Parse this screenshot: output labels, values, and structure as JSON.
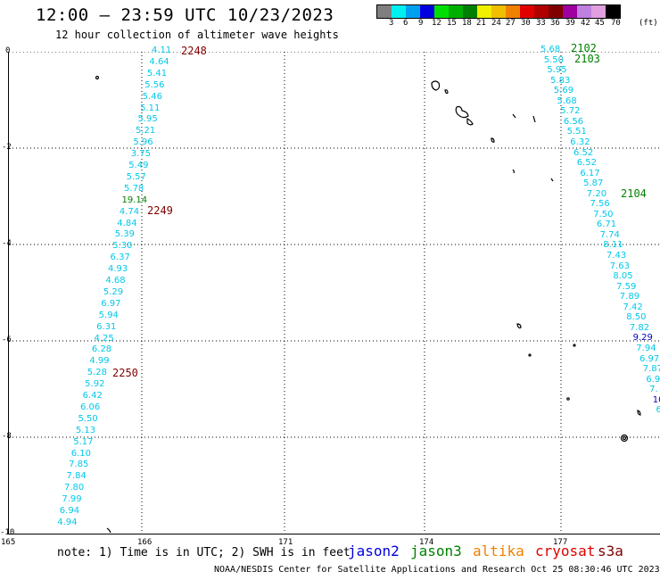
{
  "header": {
    "title": "12:00 – 23:59 UTC 10/23/2023",
    "subtitle": "12 hour collection of altimeter wave heights"
  },
  "colorbar": {
    "colors": [
      "#7f7f7f",
      "#00f0f0",
      "#00a0f0",
      "#0000e0",
      "#00e000",
      "#00b000",
      "#008000",
      "#f0f000",
      "#f0c000",
      "#f08000",
      "#e00000",
      "#b00000",
      "#800000",
      "#a000a0",
      "#c080e0",
      "#e0a0e0",
      "#000000"
    ],
    "labels": [
      "3",
      "6",
      "9",
      "12",
      "15",
      "18",
      "21",
      "24",
      "27",
      "30",
      "33",
      "36",
      "39",
      "42",
      "45",
      "70",
      "(ft)"
    ]
  },
  "axes": {
    "y_labels": [
      "0",
      "-2",
      "-4",
      "-6",
      "-8",
      "-10"
    ],
    "x_labels": [
      "165",
      "166",
      "171",
      "174",
      "177"
    ]
  },
  "pass_numbers": [
    {
      "text": "2248",
      "color": "#800000"
    },
    {
      "text": "2249",
      "color": "#800000"
    },
    {
      "text": "2250",
      "color": "#800000"
    },
    {
      "text": "2102",
      "color": "#008000"
    },
    {
      "text": "2103",
      "color": "#008000"
    },
    {
      "text": "2104",
      "color": "#008000"
    }
  ],
  "track_left": [
    "4.11",
    "4.64",
    "5.41",
    "5.56",
    "5.46",
    "5.11",
    "5.95",
    "5.21",
    "5.96",
    "3.75",
    "5.49",
    "5.57",
    "5.78",
    "19.14",
    "4.74",
    "4.84",
    "5.39",
    "5.30",
    "6.37",
    "4.93",
    "4.68",
    "5.29",
    "6.97",
    "5.94",
    "6.31",
    "4.25",
    "6.28",
    "4.99",
    "5.28",
    "5.92",
    "6.42",
    "6.06",
    "5.50",
    "5.13",
    "5.17",
    "6.10",
    "7.85",
    "7.84",
    "7.80",
    "7.99",
    "6.94",
    "4.94"
  ],
  "track_right": [
    "5.68",
    "5.50",
    "5.95",
    "5.83",
    "5.69",
    "5.68",
    "5.72",
    "6.56",
    "5.51",
    "6.32",
    "6.52",
    "6.52",
    "6.17",
    "5.87",
    "7.20",
    "7.56",
    "7.50",
    "6.71",
    "7.74",
    "8.11",
    "7.43",
    "7.63",
    "8.05",
    "7.59",
    "7.89",
    "7.42",
    "8.50",
    "7.82",
    "9.29",
    "7.94",
    "6.97",
    "7.87",
    "6.9",
    "7.",
    "10.",
    "6"
  ],
  "legend": {
    "note": "note:  1) Time is in UTC; 2) SWH is in feet",
    "items": [
      {
        "text": "jason2",
        "color": "#0000e0"
      },
      {
        "text": "jason3",
        "color": "#008000"
      },
      {
        "text": "altika",
        "color": "#f08000"
      },
      {
        "text": "cryosat",
        "color": "#e00000"
      },
      {
        "text": "s3a",
        "color": "#800000"
      }
    ]
  },
  "footer": "NOAA/NESDIS Center for Satellite Applications and Research    Oct 25 08:30:46 UTC 2023"
}
